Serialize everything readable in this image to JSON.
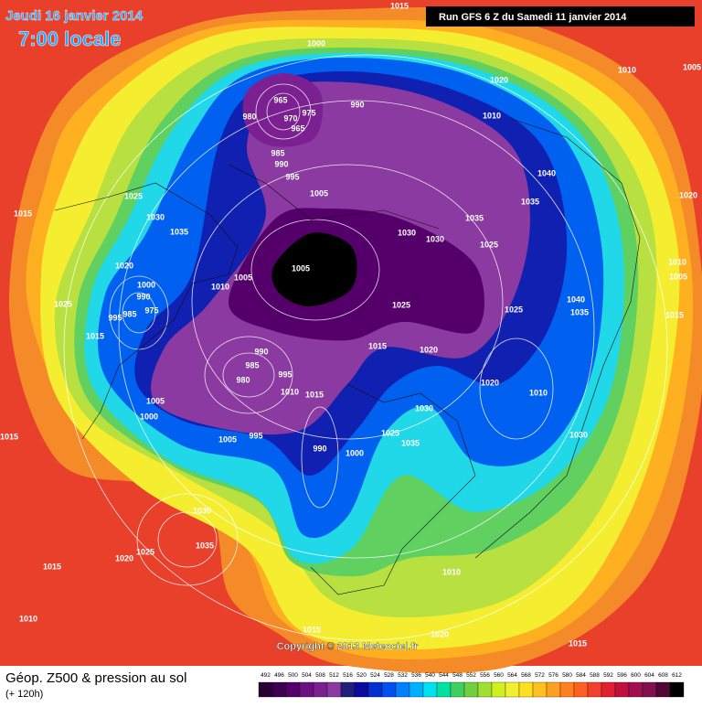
{
  "header": {
    "date": "Jeudi 16 janvier 2014",
    "time": "7:00 locale",
    "run": "Run GFS 6 Z du Samedi 11 janvier 2014"
  },
  "isobar_labels": [
    "1015",
    "1000",
    "1010",
    "1005",
    "1020",
    "965",
    "990",
    "970",
    "975",
    "965",
    "980",
    "1010",
    "985",
    "990",
    "995",
    "1040",
    "1005",
    "1025",
    "1020",
    "1035",
    "1015",
    "1030",
    "1035",
    "1035",
    "1030",
    "1030",
    "1025",
    "1020",
    "1005",
    "1010",
    "1005",
    "1010",
    "1000",
    "990",
    "1005",
    "1025",
    "1040",
    "1025",
    "975",
    "1025",
    "1035",
    "1015",
    "995",
    "985",
    "1015",
    "1015",
    "1020",
    "990",
    "985",
    "995",
    "980",
    "1020",
    "1010",
    "1015",
    "1010",
    "1005",
    "1030",
    "1000",
    "995",
    "1005",
    "1025",
    "1035",
    "1030",
    "1015",
    "990",
    "1000",
    "1030",
    "1035",
    "1025",
    "1020",
    "1015",
    "1010",
    "1010",
    "1015",
    "1020",
    "1015"
  ],
  "footer": {
    "title": "Géop. Z500 & pression au sol",
    "lead": "(+ 120h)",
    "copyright": "Copyright © 2013 Meteociel.fr"
  },
  "colorbar": {
    "labels": [
      492,
      496,
      500,
      504,
      508,
      512,
      516,
      520,
      524,
      528,
      532,
      536,
      540,
      544,
      548,
      552,
      556,
      560,
      564,
      568,
      572,
      576,
      580,
      584,
      588,
      592,
      596,
      600,
      604,
      608,
      612
    ],
    "colors": [
      "#2a0035",
      "#3d0050",
      "#55006a",
      "#6a1080",
      "#7a2090",
      "#8a3aa0",
      "#20207a",
      "#0a0aa0",
      "#0030d0",
      "#0050f0",
      "#0080ff",
      "#00b0ff",
      "#00e0f0",
      "#00e0a0",
      "#40d060",
      "#70d040",
      "#a0e030",
      "#d0f020",
      "#f0f030",
      "#ffe020",
      "#ffc020",
      "#ffa020",
      "#ff8020",
      "#ff6020",
      "#f04030",
      "#e02030",
      "#c01040",
      "#a01050",
      "#801050",
      "#500830",
      "#000000"
    ]
  }
}
